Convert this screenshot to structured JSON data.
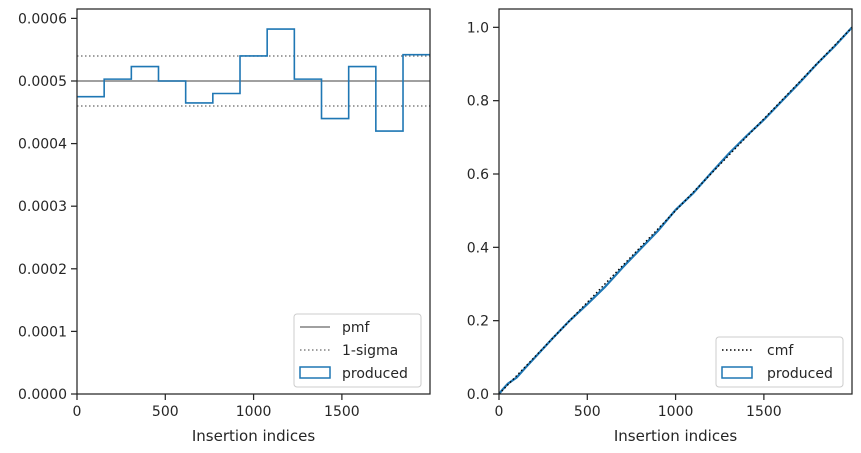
{
  "chart_data": [
    {
      "type": "line",
      "xlabel": "Insertion indices",
      "ylabel": "",
      "xlim": [
        0,
        1999
      ],
      "ylim": [
        0,
        0.000615
      ],
      "x_ticks": [
        0,
        500,
        1000,
        1500
      ],
      "x_tick_labels": [
        "0",
        "500",
        "1000",
        "1500"
      ],
      "y_ticks": [
        0,
        0.0001,
        0.0002,
        0.0003,
        0.0004,
        0.0005,
        0.0006
      ],
      "y_tick_labels": [
        "0.0000",
        "0.0001",
        "0.0002",
        "0.0003",
        "0.0004",
        "0.0005",
        "0.0006"
      ],
      "grid": false,
      "legend_position": "lower right",
      "pmf": {
        "label": "pmf",
        "value": 0.0005,
        "color": "#808080"
      },
      "sigma": {
        "label": "1-sigma",
        "lower": 0.00046,
        "upper": 0.00054,
        "color": "#808080"
      },
      "histogram": {
        "label": "produced",
        "color": "#1f77b4",
        "bin_edges": [
          0,
          153.8,
          307.7,
          461.5,
          615.4,
          769.2,
          923.1,
          1076.9,
          1230.8,
          1384.6,
          1538.5,
          1692.3,
          1846.2,
          1999
        ],
        "values": [
          0.000475,
          0.000503,
          0.000523,
          0.0005,
          0.000465,
          0.00048,
          0.00054,
          0.000583,
          0.000503,
          0.00044,
          0.000523,
          0.00042,
          0.000542
        ]
      }
    },
    {
      "type": "line",
      "xlabel": "Insertion indices",
      "ylabel": "",
      "xlim": [
        0,
        1999
      ],
      "ylim": [
        0,
        1.05
      ],
      "x_ticks": [
        0,
        500,
        1000,
        1500
      ],
      "x_tick_labels": [
        "0",
        "500",
        "1000",
        "1500"
      ],
      "y_ticks": [
        0,
        0.2,
        0.4,
        0.6,
        0.8,
        1.0
      ],
      "y_tick_labels": [
        "0.0",
        "0.2",
        "0.4",
        "0.6",
        "0.8",
        "1.0"
      ],
      "grid": false,
      "legend_position": "lower right",
      "cmf": {
        "label": "cmf",
        "x": [
          0,
          1999
        ],
        "y": [
          0,
          1.0
        ],
        "color": "#000000"
      },
      "produced": {
        "label": "produced",
        "color": "#1f77b4",
        "x": [
          0,
          20,
          50,
          100,
          150,
          200,
          300,
          400,
          500,
          600,
          700,
          800,
          900,
          1000,
          1100,
          1200,
          1300,
          1400,
          1500,
          1600,
          1700,
          1800,
          1900,
          1999
        ],
        "y": [
          0,
          0.012,
          0.028,
          0.045,
          0.072,
          0.098,
          0.15,
          0.2,
          0.245,
          0.292,
          0.345,
          0.395,
          0.445,
          0.502,
          0.548,
          0.602,
          0.655,
          0.703,
          0.748,
          0.798,
          0.848,
          0.9,
          0.948,
          1.0
        ]
      }
    }
  ]
}
